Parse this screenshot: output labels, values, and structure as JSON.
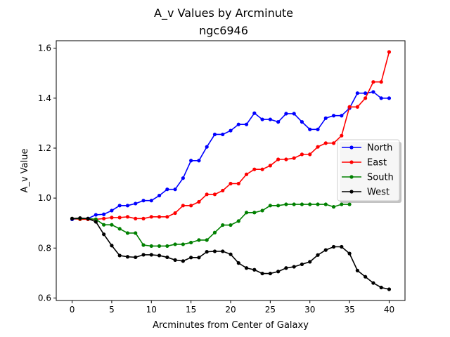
{
  "chart_data": {
    "type": "line",
    "title": "A_v Values by Arcminute",
    "subtitle": "ngc6946",
    "xlabel": "Arcminutes from Center of Galaxy",
    "ylabel": "A_v Value",
    "xlim": [
      -2,
      42
    ],
    "ylim": [
      0.59,
      1.63
    ],
    "xticks": [
      0,
      5,
      10,
      15,
      20,
      25,
      30,
      35,
      40
    ],
    "yticks": [
      0.6,
      0.8,
      1.0,
      1.2,
      1.4,
      1.6
    ],
    "xtick_labels": [
      "0",
      "5",
      "10",
      "15",
      "20",
      "25",
      "30",
      "35",
      "40"
    ],
    "ytick_labels": [
      "0.6",
      "0.8",
      "1.0",
      "1.2",
      "1.4",
      "1.6"
    ],
    "grid": false,
    "legend_position": "right",
    "x": [
      0,
      1,
      2,
      3,
      4,
      5,
      6,
      7,
      8,
      9,
      10,
      11,
      12,
      13,
      14,
      15,
      16,
      17,
      18,
      19,
      20,
      21,
      22,
      23,
      24,
      25,
      26,
      27,
      28,
      29,
      30,
      31,
      32,
      33,
      34,
      35,
      36,
      37,
      38,
      39,
      40
    ],
    "series": [
      {
        "name": "North",
        "color": "#0000ff",
        "values": [
          0.915,
          0.918,
          0.918,
          0.933,
          0.935,
          0.95,
          0.97,
          0.97,
          0.978,
          0.99,
          0.99,
          1.01,
          1.035,
          1.035,
          1.08,
          1.15,
          1.15,
          1.205,
          1.255,
          1.255,
          1.27,
          1.295,
          1.295,
          1.34,
          1.315,
          1.315,
          1.305,
          1.338,
          1.338,
          1.305,
          1.275,
          1.275,
          1.32,
          1.33,
          1.33,
          1.36,
          1.42,
          1.42,
          1.425,
          1.4,
          1.4
        ]
      },
      {
        "name": "East",
        "color": "#ff0000",
        "values": [
          0.918,
          0.915,
          0.915,
          0.915,
          0.918,
          0.922,
          0.922,
          0.925,
          0.918,
          0.918,
          0.925,
          0.925,
          0.925,
          0.94,
          0.97,
          0.97,
          0.985,
          1.015,
          1.015,
          1.03,
          1.058,
          1.058,
          1.095,
          1.115,
          1.115,
          1.13,
          1.155,
          1.155,
          1.16,
          1.175,
          1.175,
          1.205,
          1.22,
          1.22,
          1.25,
          1.365,
          1.365,
          1.4,
          1.465,
          1.465,
          1.585
        ]
      },
      {
        "name": "South",
        "color": "#008000",
        "values": [
          0.918,
          0.918,
          0.918,
          0.915,
          0.893,
          0.893,
          0.877,
          0.86,
          0.86,
          0.812,
          0.808,
          0.808,
          0.808,
          0.815,
          0.815,
          0.822,
          0.832,
          0.832,
          0.862,
          0.892,
          0.892,
          0.908,
          0.942,
          0.942,
          0.95,
          0.97,
          0.97,
          0.975,
          0.975,
          0.975,
          0.975,
          0.975,
          0.975,
          0.965,
          0.975,
          0.975,
          null,
          null,
          null,
          null,
          null
        ]
      },
      {
        "name": "West",
        "color": "#000000",
        "values": [
          0.918,
          0.92,
          0.918,
          0.905,
          0.855,
          0.81,
          0.77,
          0.765,
          0.763,
          0.773,
          0.773,
          0.77,
          0.763,
          0.752,
          0.748,
          0.762,
          0.762,
          0.785,
          0.787,
          0.787,
          0.775,
          0.74,
          0.72,
          0.713,
          0.698,
          0.698,
          0.706,
          0.72,
          0.725,
          0.735,
          0.745,
          0.772,
          0.792,
          0.805,
          0.805,
          0.778,
          0.71,
          0.685,
          0.66,
          0.642,
          0.635
        ]
      }
    ]
  }
}
